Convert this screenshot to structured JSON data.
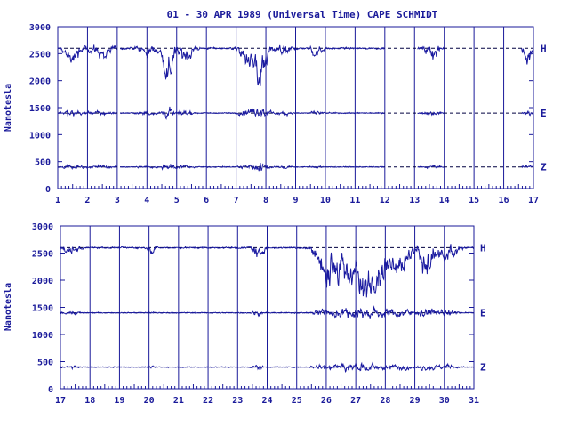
{
  "title": "01 - 30 APR 1989 (Universal Time) CAPE SCHMIDT",
  "colors": {
    "ink": "#1a1a9a",
    "trace": "#1a1aa0",
    "background": "#ffffff"
  },
  "chart_data": [
    {
      "type": "line",
      "panel": "top",
      "ylabel": "Nanotesla",
      "xlim": [
        1,
        17
      ],
      "ylim": [
        0,
        3000
      ],
      "x_ticks": [
        "1",
        "2",
        "3",
        "4",
        "5",
        "6",
        "7",
        "8",
        "9",
        "10",
        "11",
        "12",
        "13",
        "14",
        "15",
        "16",
        "17"
      ],
      "y_ticks": [
        "0",
        "500",
        "1000",
        "1500",
        "2000",
        "2500",
        "3000"
      ],
      "data_gaps": [
        [
          3.0,
          3.1
        ],
        [
          12.0,
          13.1
        ],
        [
          14.0,
          16.6
        ]
      ],
      "series": [
        {
          "name": "H",
          "baseline": 2600
        },
        {
          "name": "E",
          "baseline": 1400
        },
        {
          "name": "Z",
          "baseline": 400
        }
      ]
    },
    {
      "type": "line",
      "panel": "bottom",
      "ylabel": "Nanotesla",
      "xlim": [
        17,
        31
      ],
      "ylim": [
        0,
        3000
      ],
      "x_ticks": [
        "17",
        "18",
        "19",
        "20",
        "21",
        "22",
        "23",
        "24",
        "25",
        "26",
        "27",
        "28",
        "29",
        "30",
        "31"
      ],
      "y_ticks": [
        "0",
        "500",
        "1000",
        "1500",
        "2000",
        "2500",
        "3000"
      ],
      "data_gaps": [],
      "series": [
        {
          "name": "H",
          "baseline": 2600
        },
        {
          "name": "E",
          "baseline": 1400
        },
        {
          "name": "Z",
          "baseline": 400
        }
      ]
    }
  ]
}
